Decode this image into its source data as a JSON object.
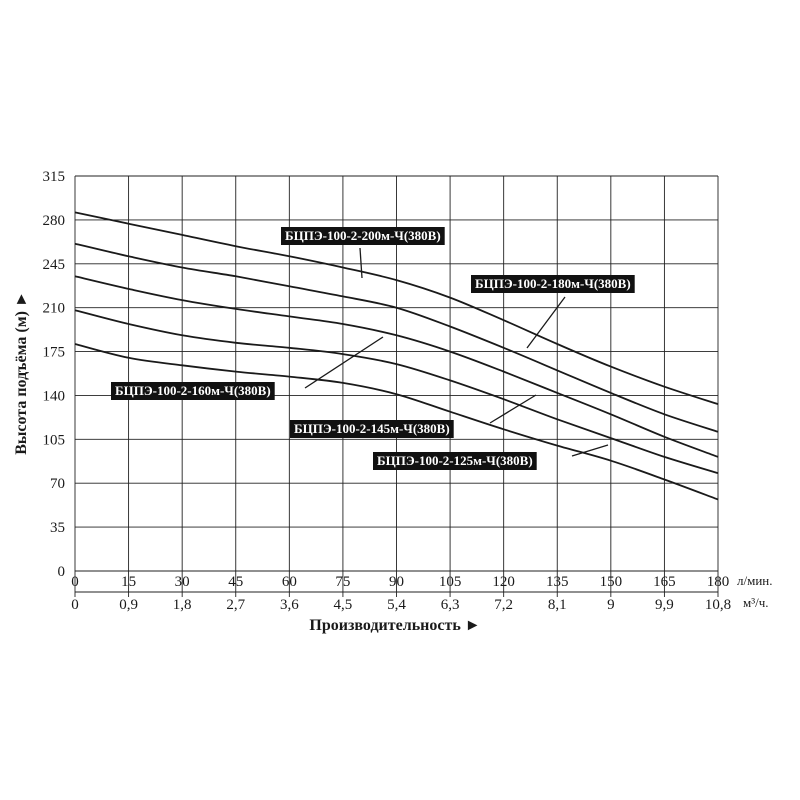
{
  "chart_data": {
    "type": "line",
    "ylabel": "Высота подъёма (м) ►",
    "xlabel": "Производительность ►",
    "y_ticks": [
      "0",
      "35",
      "70",
      "105",
      "140",
      "175",
      "210",
      "245",
      "280",
      "315"
    ],
    "ylim": [
      0,
      315
    ],
    "x_ticks": [
      "0",
      "15",
      "30",
      "45",
      "60",
      "75",
      "90",
      "105",
      "120",
      "135",
      "150",
      "165",
      "180"
    ],
    "x_unit": "л/мин.",
    "x2_ticks": [
      "0",
      "0,9",
      "1,8",
      "2,7",
      "3,6",
      "4,5",
      "5,4",
      "6,3",
      "7,2",
      "8,1",
      "9",
      "9,9",
      "10,8"
    ],
    "x2_unit": "м³/ч.",
    "xlim": [
      0,
      180
    ],
    "grid": true,
    "series": [
      {
        "name": "БЦПЭ-100-2-200м-Ч(380В)",
        "x": [
          0,
          15,
          30,
          45,
          60,
          75,
          90,
          105,
          120,
          135,
          150,
          165,
          180
        ],
        "y": [
          286,
          277,
          268,
          259,
          251,
          242,
          232,
          218,
          200,
          181,
          163,
          147,
          133
        ]
      },
      {
        "name": "БЦПЭ-100-2-180м-Ч(380В)",
        "x": [
          0,
          15,
          30,
          45,
          60,
          75,
          90,
          105,
          120,
          135,
          150,
          165,
          180
        ],
        "y": [
          261,
          251,
          242,
          235,
          227,
          219,
          210,
          195,
          178,
          160,
          142,
          125,
          111
        ]
      },
      {
        "name": "БЦПЭ-100-2-160м-Ч(380В)",
        "x": [
          0,
          15,
          30,
          45,
          60,
          75,
          90,
          105,
          120,
          135,
          150,
          165,
          180
        ],
        "y": [
          235,
          225,
          216,
          209,
          203,
          197,
          188,
          175,
          159,
          142,
          125,
          107,
          91
        ]
      },
      {
        "name": "БЦПЭ-100-2-145м-Ч(380В)",
        "x": [
          0,
          15,
          30,
          45,
          60,
          75,
          90,
          105,
          120,
          135,
          150,
          165,
          180
        ],
        "y": [
          208,
          197,
          188,
          182,
          178,
          173,
          165,
          152,
          137,
          121,
          106,
          91,
          78
        ]
      },
      {
        "name": "БЦПЭ-100-2-125м-Ч(380В)",
        "x": [
          0,
          15,
          30,
          45,
          60,
          75,
          90,
          105,
          120,
          135,
          150,
          165,
          180
        ],
        "y": [
          181,
          170,
          164,
          159,
          155,
          150,
          141,
          127,
          113,
          100,
          88,
          73,
          57
        ]
      }
    ]
  }
}
